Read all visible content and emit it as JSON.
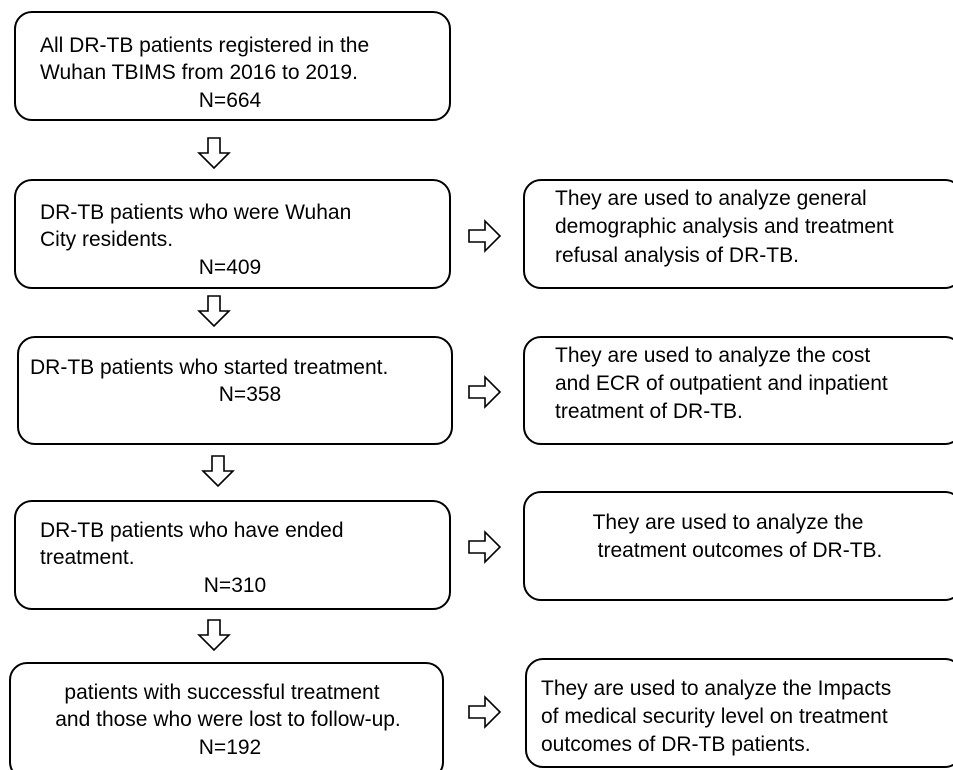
{
  "nodes": [
    {
      "lines": [
        "All DR-TB patients registered in the",
        "Wuhan TBIMS from 2016 to 2019.",
        "N=664"
      ]
    },
    {
      "lines": [
        "DR-TB patients who were Wuhan",
        "City residents.",
        "N=409"
      ]
    },
    {
      "lines": [
        "DR-TB patients who started treatment.",
        "N=358"
      ]
    },
    {
      "lines": [
        "DR-TB patients who have ended",
        "treatment.",
        "N=310"
      ]
    },
    {
      "lines": [
        "patients with successful treatment",
        "and those who were lost to follow-up.",
        "N=192"
      ]
    }
  ],
  "notes": [
    {
      "lines": [
        "They are used to analyze general",
        "demographic analysis and treatment",
        "refusal analysis of DR-TB."
      ]
    },
    {
      "lines": [
        "They are used to analyze the cost",
        "and ECR of outpatient and inpatient",
        "treatment of DR-TB."
      ]
    },
    {
      "lines": [
        "They are used to analyze the",
        "treatment outcomes of DR-TB."
      ]
    },
    {
      "lines": [
        "They are used to analyze the Impacts",
        "of medical security level on treatment",
        "outcomes of DR-TB patients."
      ]
    }
  ]
}
